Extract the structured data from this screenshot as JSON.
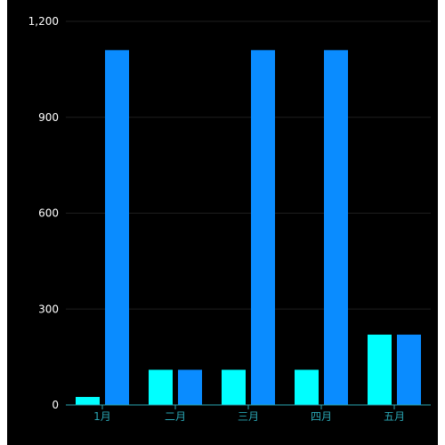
{
  "chart_data": {
    "type": "bar",
    "categories": [
      "1月",
      "二月",
      "三月",
      "四月",
      "五月"
    ],
    "series": [
      {
        "values": [
          25,
          110,
          110,
          110,
          220
        ],
        "color": "#00ffff"
      },
      {
        "values": [
          1110,
          110,
          1110,
          1110,
          220
        ],
        "color": "#0a8cff"
      }
    ],
    "ylim": [
      0,
      1200
    ],
    "yticks": [
      0,
      300,
      600,
      900,
      1200
    ],
    "ytick_labels": [
      "0",
      "300",
      "600",
      "900",
      "1,200"
    ],
    "grid": true,
    "background": "#000000",
    "axis_color": "#2aa7b5",
    "grid_color": "#1e1e1e"
  }
}
